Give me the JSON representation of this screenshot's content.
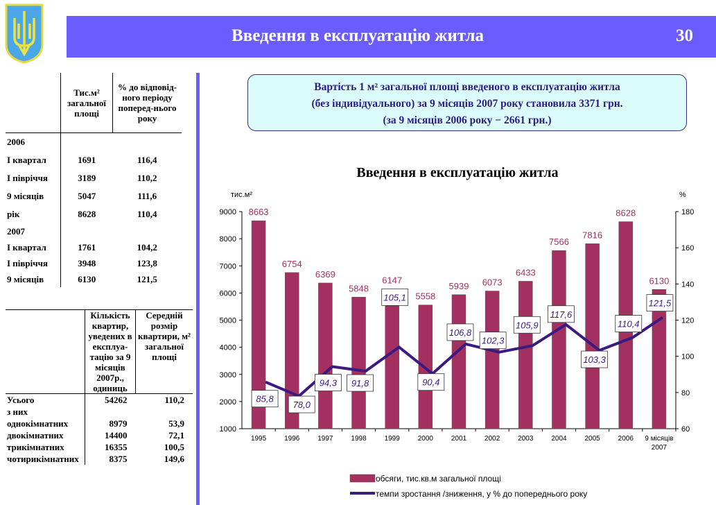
{
  "header": {
    "title": "Введення в експлуатацію житла",
    "page_number": "30",
    "emblem": "coat-of-arms-of-ukraine"
  },
  "colors": {
    "banner": "#6a5cff",
    "bars": "#a3305f",
    "line": "#3b1a82"
  },
  "table1": {
    "headers": [
      "",
      "Тис.м² загальної площі",
      "% до відповід-ного періоду поперед-нього року"
    ],
    "rows": [
      [
        "2006",
        "",
        ""
      ],
      [
        "І квартал",
        "1691",
        "116,4"
      ],
      [
        "І півріччя",
        "3189",
        "110,2"
      ],
      [
        "9 місяців",
        "5047",
        "111,6"
      ],
      [
        "рік",
        "8628",
        "110,4"
      ],
      [
        "2007",
        "",
        ""
      ],
      [
        "І квартал",
        "1761",
        "104,2"
      ],
      [
        "І півріччя",
        "3948",
        "123,8"
      ],
      [
        "9 місяців",
        "6130",
        "121,5"
      ]
    ]
  },
  "table2": {
    "headers": [
      "",
      "Кількість квартир, уведених в експлуа-тацію за 9 місяців 2007р., одиниць",
      "Середній розмір квартири, м² загальної площі"
    ],
    "rows": [
      [
        "Усього",
        "54262",
        "110,2"
      ],
      [
        "з них",
        "",
        ""
      ],
      [
        "однокімнатних",
        "8979",
        "53,9"
      ],
      [
        "двокімнатних",
        "14400",
        "72,1"
      ],
      [
        "трикімнатних",
        "16355",
        "100,5"
      ],
      [
        "чотирикімнатних",
        "8375",
        "149,6"
      ]
    ]
  },
  "note": {
    "line1": "Вартість 1 м² загальної площі введеного в експлуатацію житла",
    "line2": "(без індивідуального) за 9 місяців 2007 року становила 3371 грн.",
    "line3": "(за 9 місяців 2006 року − 2661 грн.)"
  },
  "chart_data": {
    "type": "bar+line",
    "title": "Введення в експлуатацію житла",
    "ylabel_left": "тис.м²",
    "ylabel_right": "%",
    "categories": [
      "1995",
      "1996",
      "1997",
      "1998",
      "1999",
      "2000",
      "2001",
      "2002",
      "2003",
      "2004",
      "2005",
      "2006",
      "9 місяців 2007"
    ],
    "ylim_left": [
      1000,
      9000
    ],
    "yticks_left": [
      1000,
      2000,
      3000,
      4000,
      5000,
      6000,
      7000,
      8000,
      9000
    ],
    "ylim_right": [
      60,
      180
    ],
    "yticks_right": [
      60,
      80,
      100,
      120,
      140,
      160,
      180
    ],
    "series": [
      {
        "name": "обсяги, тис.кв.м загальної площі",
        "type": "bar",
        "axis": "left",
        "values": [
          8663,
          6754,
          6369,
          5848,
          6147,
          5558,
          5939,
          6073,
          6433,
          7566,
          7816,
          8628,
          6130
        ],
        "labels": [
          "8663",
          "6754",
          "6369",
          "5848",
          "6147",
          "5558",
          "5939",
          "6073",
          "6433",
          "7566",
          "7816",
          "8628",
          "6130"
        ]
      },
      {
        "name": "темпи зростання /зниження, у % до попереднього року",
        "type": "line",
        "axis": "right",
        "values": [
          85.8,
          78.0,
          94.3,
          91.8,
          105.1,
          90.4,
          106.8,
          102.3,
          105.9,
          117.6,
          103.3,
          110.4,
          121.5
        ],
        "labels": [
          "85,8",
          "78,0",
          "94,3",
          "91,8",
          "105,1",
          "90,4",
          "106,8",
          "102,3",
          "105,9",
          "117,6",
          "103,3",
          "110,4",
          "121,5"
        ]
      }
    ],
    "legend": "bottom"
  }
}
